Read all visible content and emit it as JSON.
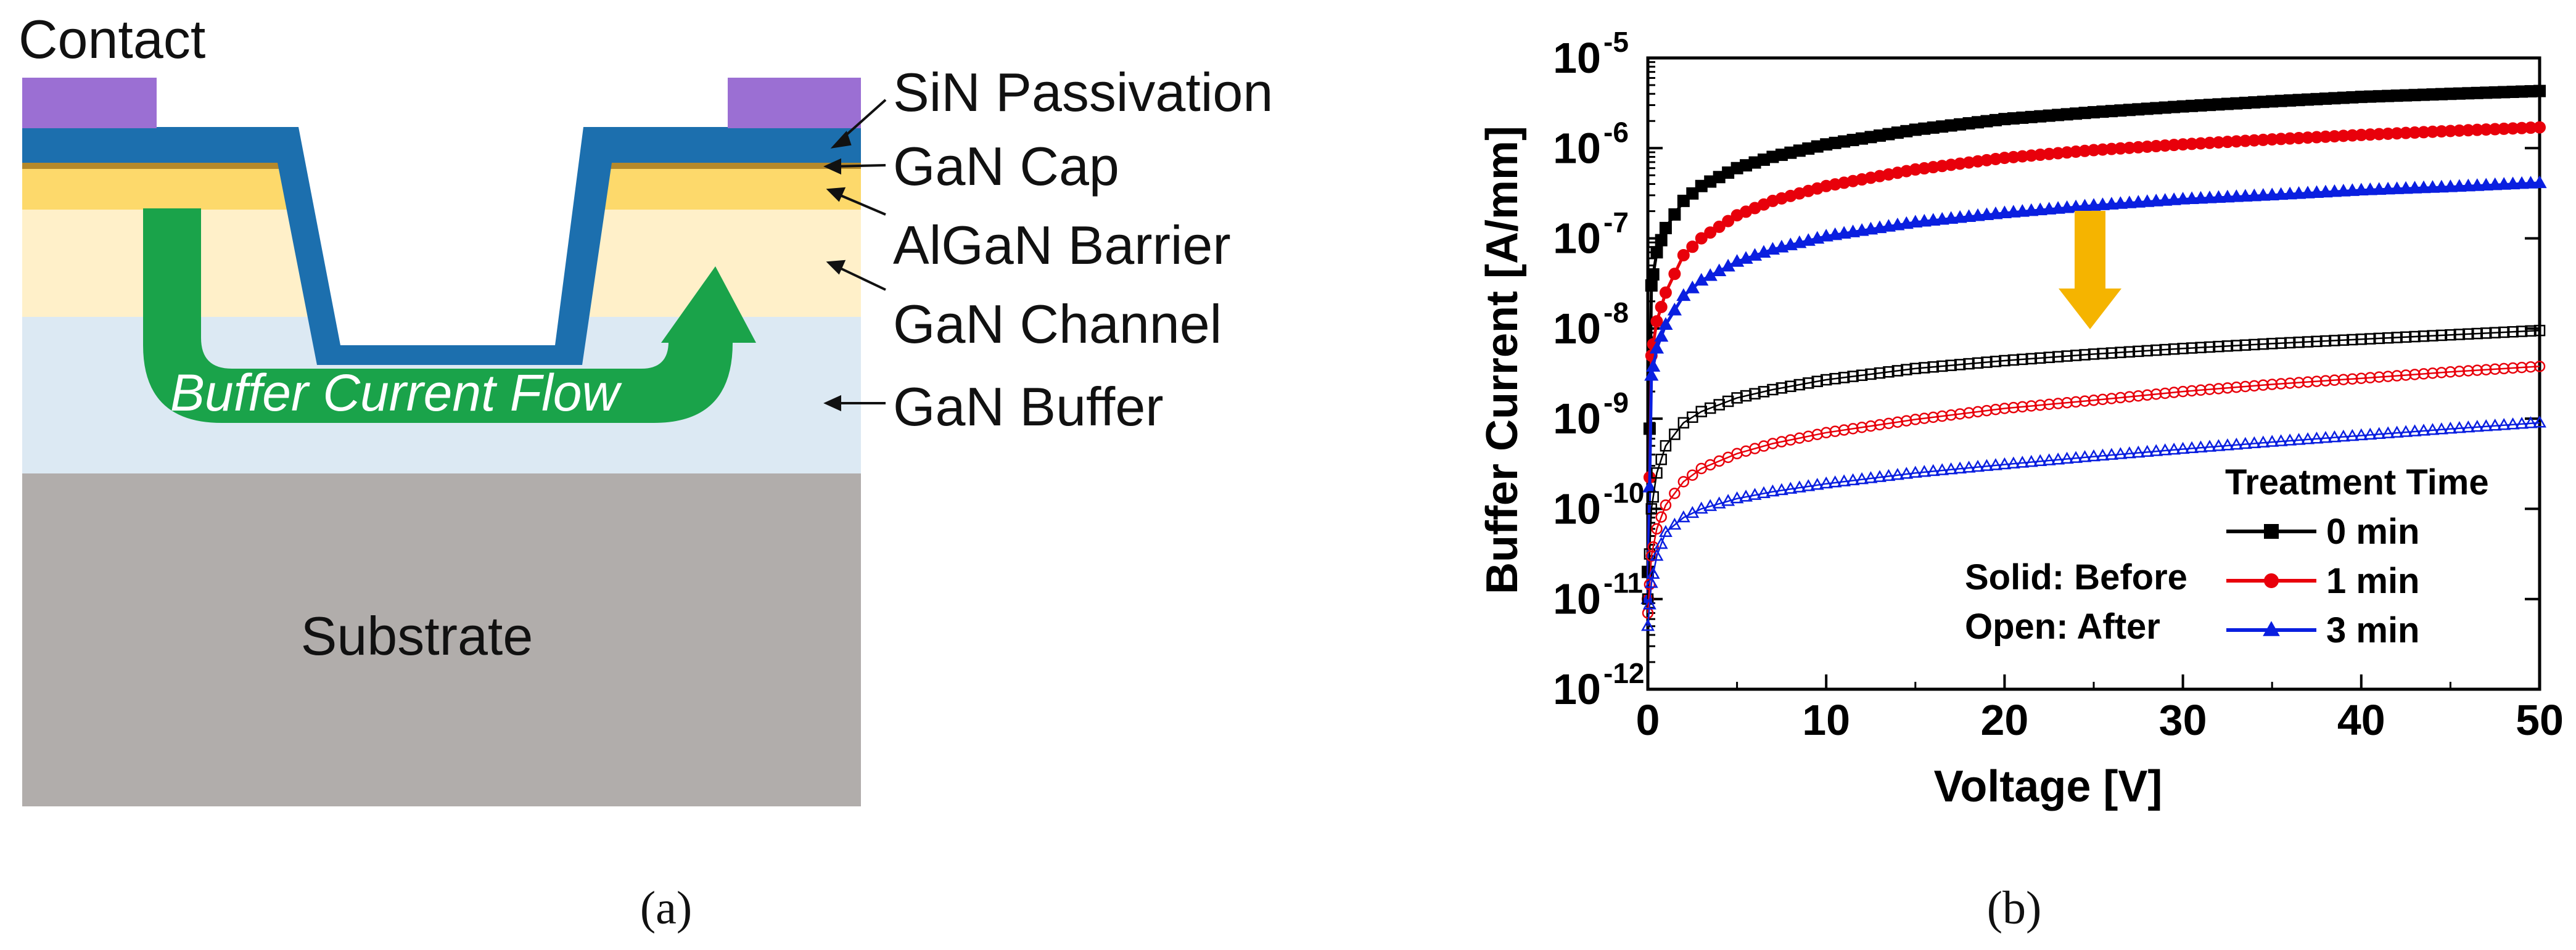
{
  "panel_a": {
    "contact_label": "Contact",
    "layer_labels": [
      "SiN Passivation",
      "GaN Cap",
      "AlGaN Barrier",
      "GaN Channel",
      "GaN Buffer"
    ],
    "substrate_label": "Substrate",
    "flow_label": "Buffer Current Flow",
    "caption": "(a)",
    "colors": {
      "contact": "#9b6fd3",
      "passivation": "#1c6fae",
      "gan_cap": "#b5892a",
      "algan_barrier": "#fdd96b",
      "gan_channel": "#fff0c9",
      "gan_buffer": "#dce9f3",
      "substrate": "#b1adab",
      "flow_arrow": "#1aa34a"
    }
  },
  "panel_b": {
    "caption": "(b)",
    "legend_title": "Treatment Time",
    "legend_entries": [
      "0 min",
      "1 min",
      "3 min"
    ],
    "note_solid": "Solid: Before",
    "note_open": "Open: After",
    "series_colors": [
      "#000000",
      "#e8000b",
      "#0a1fe0"
    ],
    "arrow_color": "#f5b400"
  },
  "chart_data": {
    "type": "line",
    "xlabel": "Voltage [V]",
    "ylabel": "Buffer Current [A/mm]",
    "xlim": [
      0,
      50
    ],
    "ylim": [
      1e-12,
      1e-05
    ],
    "yscale": "log",
    "x_ticks": [
      "0",
      "10",
      "20",
      "30",
      "40",
      "50"
    ],
    "y_ticks": [
      "-12",
      "-11",
      "-10",
      "-9",
      "-8",
      "-7",
      "-6",
      "-5"
    ],
    "y_tick_base": "10",
    "series": [
      {
        "name": "0 min (Before)",
        "marker": "square",
        "fill": "solid",
        "x": [
          0,
          0.2,
          0.5,
          1,
          2,
          3,
          5,
          7,
          10,
          15,
          20,
          25,
          30,
          35,
          40,
          45,
          50
        ],
        "values": [
          2e-11,
          3e-08,
          7e-08,
          1.3e-07,
          2.6e-07,
          3.8e-07,
          6e-07,
          8e-07,
          1.1e-06,
          1.6e-06,
          2.1e-06,
          2.5e-06,
          2.9e-06,
          3.3e-06,
          3.7e-06,
          4e-06,
          4.3e-06
        ]
      },
      {
        "name": "1 min (Before)",
        "marker": "circle",
        "fill": "solid",
        "x": [
          0,
          0.2,
          0.5,
          1,
          2,
          3,
          5,
          7,
          10,
          15,
          20,
          25,
          30,
          35,
          40,
          45,
          50
        ],
        "values": [
          1e-11,
          5e-09,
          1.2e-08,
          2.5e-08,
          6.5e-08,
          1e-07,
          1.8e-07,
          2.6e-07,
          3.8e-07,
          5.8e-07,
          7.8e-07,
          9.5e-07,
          1.1e-06,
          1.25e-06,
          1.4e-06,
          1.55e-06,
          1.7e-06
        ]
      },
      {
        "name": "3 min (Before)",
        "marker": "triangle",
        "fill": "solid",
        "x": [
          0,
          0.2,
          0.5,
          1,
          2,
          3,
          5,
          7,
          10,
          15,
          20,
          25,
          30,
          35,
          40,
          45,
          50
        ],
        "values": [
          1e-11,
          3e-09,
          6e-09,
          1.1e-08,
          2.3e-08,
          3.4e-08,
          5.5e-08,
          7.5e-08,
          1.05e-07,
          1.5e-07,
          1.9e-07,
          2.3e-07,
          2.7e-07,
          3e-07,
          3.4e-07,
          3.7e-07,
          4.1e-07
        ]
      },
      {
        "name": "0 min (After)",
        "marker": "square",
        "fill": "open",
        "x": [
          0,
          0.2,
          0.5,
          1,
          2,
          3,
          5,
          7,
          10,
          15,
          20,
          25,
          30,
          35,
          40,
          45,
          50
        ],
        "values": [
          1e-11,
          1e-10,
          2.5e-10,
          5e-10,
          9e-10,
          1.2e-09,
          1.7e-09,
          2.1e-09,
          2.7e-09,
          3.6e-09,
          4.4e-09,
          5.2e-09,
          6e-09,
          6.8e-09,
          7.6e-09,
          8.5e-09,
          9.5e-09
        ]
      },
      {
        "name": "1 min (After)",
        "marker": "circle",
        "fill": "open",
        "x": [
          0,
          0.2,
          0.5,
          1,
          2,
          3,
          5,
          7,
          10,
          15,
          20,
          25,
          30,
          35,
          40,
          45,
          50
        ],
        "values": [
          7e-12,
          3e-11,
          6e-11,
          1.1e-10,
          2e-10,
          2.8e-10,
          4.1e-10,
          5.3e-10,
          7e-10,
          9.8e-10,
          1.3e-09,
          1.6e-09,
          2e-09,
          2.4e-09,
          2.8e-09,
          3.3e-09,
          3.8e-09
        ]
      },
      {
        "name": "3 min (After)",
        "marker": "triangle",
        "fill": "open",
        "x": [
          0,
          0.2,
          0.5,
          1,
          2,
          3,
          5,
          7,
          10,
          15,
          20,
          25,
          30,
          35,
          40,
          45,
          50
        ],
        "values": [
          5e-12,
          1.5e-11,
          3e-11,
          5.5e-11,
          8e-11,
          1e-10,
          1.3e-10,
          1.55e-10,
          1.9e-10,
          2.5e-10,
          3.1e-10,
          3.8e-10,
          4.6e-10,
          5.5e-10,
          6.5e-10,
          7.7e-10,
          9e-10
        ]
      }
    ]
  }
}
